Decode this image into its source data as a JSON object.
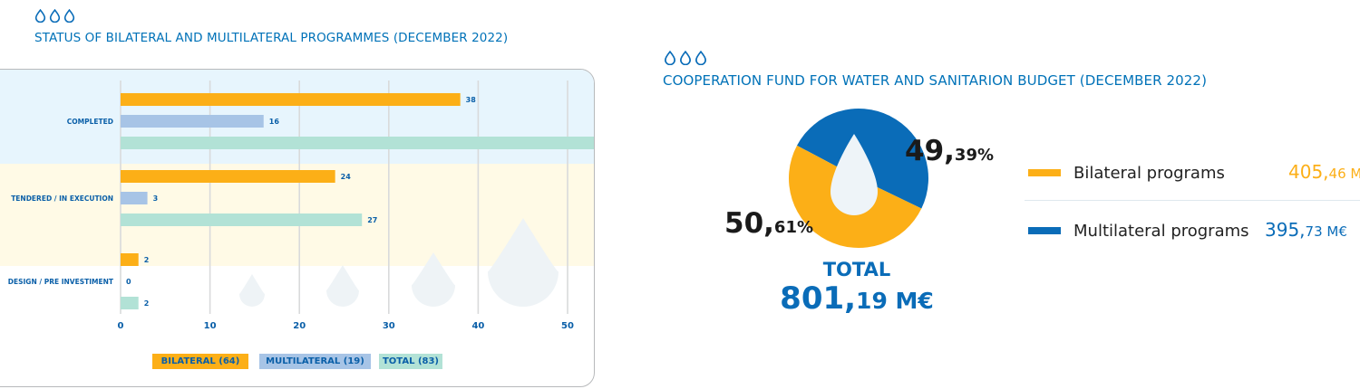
{
  "left_panel": {
    "title": "STATUS OF BILATERAL AND MULTILATERAL PROGRAMMES (DECEMBER 2022)",
    "legend": [
      {
        "label": "BILATERAL (64)",
        "color": "#fcaf17"
      },
      {
        "label": "MULTILATERAL (19)",
        "color": "#a7c4e6"
      },
      {
        "label": "TOTAL (83)",
        "color": "#b2e2d6"
      }
    ]
  },
  "right_panel": {
    "title": "COOPERATION FUND FOR WATER AND SANITARION BUDGET (DECEMBER 2022)",
    "bilateral_pct_big": "50,",
    "bilateral_pct_small": "61%",
    "multilateral_pct_big": "49,",
    "multilateral_pct_small": "39%",
    "total_label": "TOTAL",
    "total_big": "801,",
    "total_small": "19 M€",
    "legend": [
      {
        "label": "Bilateral programs",
        "amount_big": "405,",
        "amount_small": "46 M€",
        "color": "#fcaf17"
      },
      {
        "label": "Multilateral programs",
        "amount_big": "395,",
        "amount_small": "73 M€",
        "color": "#0a6cb8"
      }
    ]
  },
  "chart_data": [
    {
      "type": "bar",
      "orientation": "horizontal",
      "categories": [
        "COMPLETED",
        "TENDERED / IN EXECUTION",
        "DESIGN / PRE INVESTIMENT"
      ],
      "series": [
        {
          "name": "BILATERAL (64)",
          "values": [
            38,
            24,
            2
          ],
          "color": "#fcaf17"
        },
        {
          "name": "MULTILATERAL (19)",
          "values": [
            16,
            3,
            0
          ],
          "color": "#a7c4e6"
        },
        {
          "name": "TOTAL (83)",
          "values": [
            54,
            27,
            2
          ],
          "color": "#b2e2d6"
        }
      ],
      "xlim": [
        0,
        50
      ],
      "xticks": [
        0,
        10,
        20,
        30,
        40,
        50
      ],
      "grid": true,
      "legend_position": "bottom"
    },
    {
      "type": "pie",
      "labels": [
        "Bilateral programs",
        "Multilateral programs"
      ],
      "values": [
        50.61,
        49.39
      ],
      "colors": [
        "#fcaf17",
        "#0a6cb8"
      ]
    }
  ]
}
